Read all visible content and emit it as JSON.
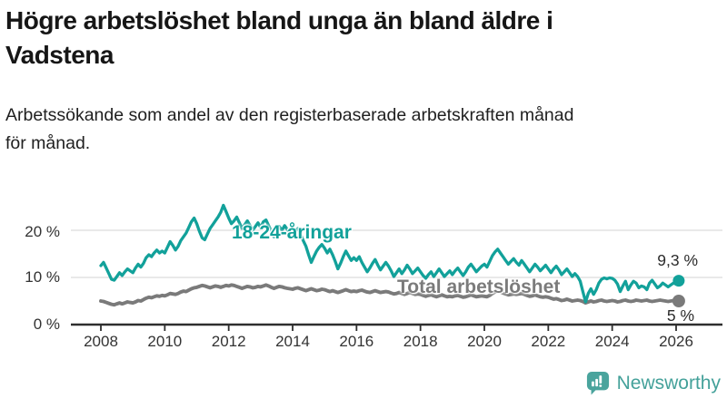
{
  "header": {
    "title_line1": "Högre arbetslöshet bland unga än bland äldre i",
    "title_line2": "Vadstena",
    "subtitle_line1": "Arbetssökande som andel av den registerbaserade arbetskraften månad",
    "subtitle_line2": "för månad."
  },
  "footer": {
    "brand": "Newsworthy",
    "brand_color": "#44a19a",
    "icon": "bar-chart-speech-bubble-icon"
  },
  "chart_data": {
    "type": "line",
    "title": "Högre arbetslöshet bland unga än bland äldre i Vadstena",
    "subtitle": "Arbetssökande som andel av den registerbaserade arbetskraften månad för månad.",
    "unit": "%",
    "frequency": "monthly",
    "x_start": "2008-01",
    "x_end": "2026-02",
    "grid": "horizontal",
    "legend_position": "inline-labels",
    "x_axis": {
      "ticks": [
        2008,
        2010,
        2012,
        2014,
        2016,
        2018,
        2020,
        2022,
        2024,
        2026
      ]
    },
    "y_axis": {
      "range": [
        0,
        29
      ],
      "ticks": [
        {
          "label": "0 %",
          "value": 0
        },
        {
          "label": "10 %",
          "value": 10
        },
        {
          "label": "20 %",
          "value": 20
        }
      ]
    },
    "series": [
      {
        "name": "18-24-åringar",
        "color": "#12a19a",
        "end_label": "9,3 %",
        "end_value": 9.3,
        "values": [
          12.5,
          13.2,
          12.0,
          10.8,
          9.6,
          9.4,
          10.2,
          11.0,
          10.4,
          11.2,
          11.8,
          11.4,
          11.0,
          12.0,
          12.8,
          12.2,
          13.0,
          14.2,
          14.8,
          14.4,
          15.2,
          15.8,
          15.2,
          15.6,
          15.2,
          16.4,
          17.6,
          16.8,
          15.8,
          16.6,
          17.8,
          18.6,
          19.4,
          20.6,
          21.8,
          22.6,
          21.4,
          19.8,
          18.4,
          18.0,
          19.2,
          20.4,
          21.2,
          22.0,
          22.8,
          23.8,
          25.3,
          24.0,
          22.6,
          21.4,
          22.0,
          22.8,
          21.6,
          20.4,
          21.2,
          22.0,
          21.0,
          20.0,
          20.8,
          21.6,
          20.6,
          21.8,
          22.2,
          21.0,
          19.8,
          18.6,
          19.6,
          20.8,
          20.0,
          21.0,
          20.2,
          19.4,
          18.6,
          19.8,
          20.4,
          19.2,
          17.8,
          16.6,
          14.8,
          13.2,
          14.4,
          15.6,
          16.4,
          17.0,
          16.2,
          15.2,
          16.0,
          14.8,
          13.4,
          11.8,
          13.0,
          14.4,
          15.6,
          14.6,
          13.6,
          14.2,
          13.6,
          14.4,
          13.2,
          12.2,
          11.2,
          12.0,
          13.0,
          13.8,
          12.6,
          11.6,
          12.4,
          13.2,
          12.4,
          11.4,
          10.2,
          11.0,
          11.8,
          10.8,
          11.6,
          12.6,
          11.8,
          10.8,
          11.4,
          12.0,
          11.2,
          10.4,
          9.8,
          10.6,
          11.2,
          10.2,
          11.0,
          11.8,
          11.0,
          10.2,
          10.8,
          11.4,
          10.6,
          11.4,
          12.0,
          11.2,
          10.4,
          11.2,
          12.2,
          12.8,
          12.0,
          11.2,
          11.8,
          12.4,
          12.8,
          12.2,
          13.4,
          14.6,
          15.4,
          16.0,
          15.2,
          14.4,
          13.6,
          12.8,
          13.4,
          14.0,
          13.2,
          12.6,
          13.6,
          12.8,
          12.0,
          11.2,
          12.0,
          12.8,
          12.2,
          11.4,
          12.0,
          12.6,
          11.8,
          11.0,
          11.8,
          12.4,
          11.6,
          10.6,
          11.2,
          11.8,
          11.0,
          10.2,
          10.8,
          10.2,
          9.2,
          7.0,
          4.8,
          6.6,
          7.6,
          6.4,
          7.4,
          8.8,
          9.6,
          9.9,
          9.7,
          9.9,
          9.8,
          9.4,
          8.6,
          7.0,
          8.2,
          9.2,
          7.4,
          8.4,
          9.2,
          8.8,
          7.8,
          8.2,
          8.0,
          7.4,
          8.8,
          9.4,
          8.6,
          7.8,
          8.2,
          8.8,
          8.4,
          8.0,
          8.4,
          8.8,
          8.6,
          9.3
        ]
      },
      {
        "name": "Total arbetslöshet",
        "color": "#7a7a7a",
        "end_label": "5 %",
        "end_value": 5.0,
        "values": [
          5.0,
          4.9,
          4.7,
          4.5,
          4.3,
          4.2,
          4.4,
          4.6,
          4.4,
          4.6,
          4.8,
          4.7,
          4.6,
          4.8,
          5.1,
          5.0,
          5.3,
          5.6,
          5.8,
          5.7,
          5.9,
          6.1,
          6.0,
          6.2,
          6.1,
          6.3,
          6.6,
          6.5,
          6.4,
          6.6,
          6.9,
          7.1,
          7.0,
          7.3,
          7.6,
          7.8,
          7.9,
          8.1,
          8.3,
          8.2,
          8.0,
          7.8,
          8.0,
          8.2,
          8.1,
          7.9,
          8.1,
          8.3,
          8.2,
          8.4,
          8.3,
          8.1,
          7.9,
          7.7,
          7.9,
          8.1,
          8.0,
          7.8,
          7.9,
          8.1,
          8.0,
          8.2,
          8.4,
          8.2,
          7.9,
          7.7,
          7.9,
          8.1,
          8.0,
          7.8,
          7.7,
          7.6,
          7.5,
          7.7,
          7.8,
          7.6,
          7.4,
          7.2,
          7.4,
          7.6,
          7.4,
          7.2,
          7.3,
          7.5,
          7.4,
          7.2,
          7.0,
          7.2,
          7.0,
          6.8,
          7.0,
          7.2,
          7.4,
          7.2,
          7.0,
          7.1,
          7.0,
          7.2,
          7.3,
          7.1,
          6.9,
          6.8,
          7.0,
          7.2,
          7.0,
          6.8,
          6.9,
          7.0,
          6.9,
          6.7,
          6.5,
          6.6,
          6.8,
          6.6,
          6.4,
          6.6,
          6.8,
          6.6,
          6.4,
          6.5,
          6.4,
          6.2,
          6.0,
          6.2,
          6.3,
          6.1,
          5.9,
          6.1,
          6.3,
          6.1,
          5.9,
          6.0,
          5.9,
          6.1,
          6.2,
          6.0,
          5.8,
          5.9,
          6.1,
          6.3,
          6.1,
          5.9,
          6.0,
          6.1,
          6.0,
          5.9,
          6.2,
          6.6,
          6.9,
          7.1,
          6.9,
          6.7,
          6.5,
          6.3,
          6.4,
          6.5,
          6.4,
          6.5,
          6.6,
          6.4,
          6.2,
          6.0,
          6.1,
          6.3,
          6.1,
          5.9,
          5.8,
          5.9,
          5.8,
          5.6,
          5.4,
          5.5,
          5.3,
          5.1,
          5.2,
          5.4,
          5.2,
          5.0,
          5.1,
          5.2,
          5.1,
          4.9,
          4.6,
          4.8,
          5.0,
          4.8,
          4.9,
          5.1,
          5.2,
          5.0,
          4.9,
          5.0,
          5.1,
          5.0,
          4.8,
          4.9,
          5.1,
          5.2,
          5.0,
          4.9,
          5.0,
          5.2,
          5.1,
          5.0,
          5.1,
          5.2,
          5.0,
          4.9,
          5.0,
          5.1,
          5.2,
          5.1,
          5.0,
          4.9,
          5.0,
          5.1,
          5.0,
          5.0
        ]
      }
    ],
    "colors": {
      "grid": "#dcdcdc",
      "axis": "#2e2e2e",
      "tick_text": "#333333"
    }
  }
}
